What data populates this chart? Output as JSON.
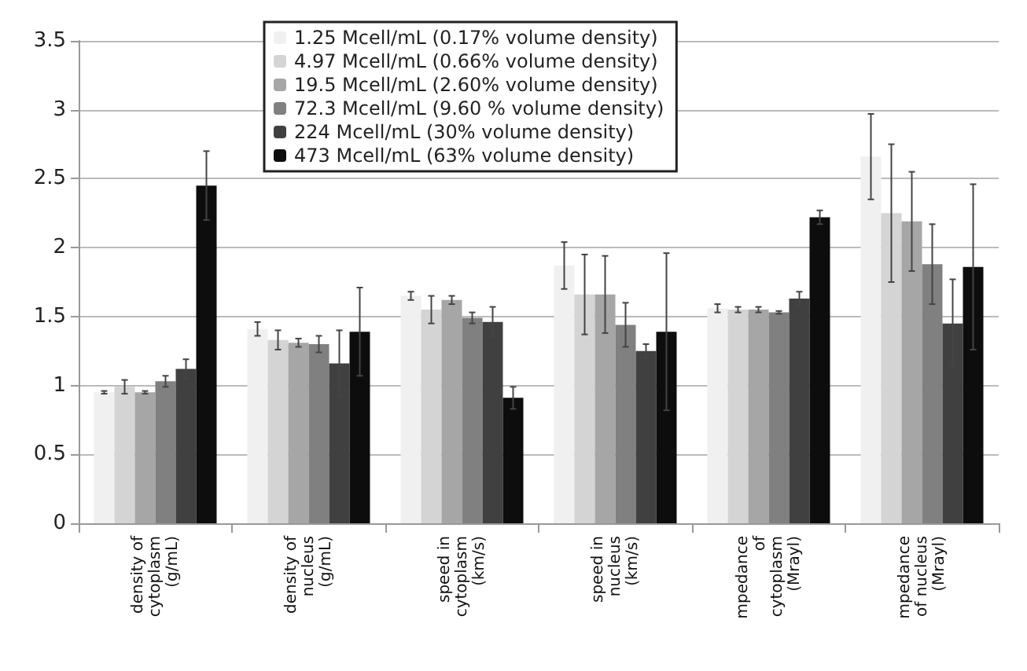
{
  "chart_data": {
    "type": "bar",
    "categories": [
      "density of\ncytoplasm\n(g/mL)",
      "density of\nnucleus\n(g/mL)",
      "speed in\ncytoplasm\n(km/s)",
      "speed in\nnucleus\n(km/s)",
      "mpedance\nof\ncytoplasm\n(Mrayl)",
      "mpedance\nof nucleus\n(Mrayl)"
    ],
    "series": [
      {
        "name": "1.25 Mcell/mL (0.17% volume density)",
        "color": "#f0f0f0",
        "values": [
          0.95,
          1.41,
          1.65,
          1.87,
          1.56,
          2.66
        ],
        "errors": [
          0.01,
          0.05,
          0.03,
          0.17,
          0.03,
          0.31
        ]
      },
      {
        "name": "4.97 Mcell/mL (0.66% volume density)",
        "color": "#d4d4d4",
        "values": [
          0.99,
          1.33,
          1.55,
          1.66,
          1.55,
          2.25
        ],
        "errors": [
          0.05,
          0.07,
          0.1,
          0.29,
          0.02,
          0.5
        ]
      },
      {
        "name": "19.5 Mcell/mL (2.60% volume density)",
        "color": "#a6a6a6",
        "values": [
          0.95,
          1.31,
          1.62,
          1.66,
          1.55,
          2.19
        ],
        "errors": [
          0.01,
          0.03,
          0.03,
          0.28,
          0.02,
          0.36
        ]
      },
      {
        "name": "72.3 Mcell/mL (9.60 % volume density)",
        "color": "#808080",
        "values": [
          1.03,
          1.3,
          1.49,
          1.44,
          1.53,
          1.88
        ],
        "errors": [
          0.04,
          0.06,
          0.04,
          0.16,
          0.01,
          0.29
        ]
      },
      {
        "name": "224 Mcell/mL (30% volume density)",
        "color": "#404040",
        "values": [
          1.12,
          1.16,
          1.46,
          1.25,
          1.63,
          1.45
        ],
        "errors": [
          0.07,
          0.24,
          0.11,
          0.05,
          0.05,
          0.32
        ]
      },
      {
        "name": "473 Mcell/mL (63% volume density)",
        "color": "#0d0d0d",
        "values": [
          2.45,
          1.39,
          0.91,
          1.39,
          2.22,
          1.86
        ],
        "errors": [
          0.25,
          0.32,
          0.08,
          0.57,
          0.05,
          0.6
        ]
      }
    ],
    "ylim": [
      0,
      3.5
    ],
    "yticks": [
      0,
      0.5,
      1,
      1.5,
      2,
      2.5,
      3,
      3.5
    ],
    "grid": "y",
    "legend": "top"
  }
}
